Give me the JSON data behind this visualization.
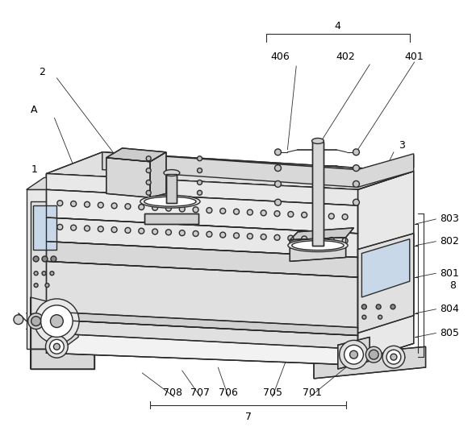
{
  "background_color": "#ffffff",
  "line_color": "#2c2c2c",
  "fig_width": 5.9,
  "fig_height": 5.35,
  "lw_main": 1.0,
  "lw_thin": 0.6,
  "lw_thick": 1.3
}
